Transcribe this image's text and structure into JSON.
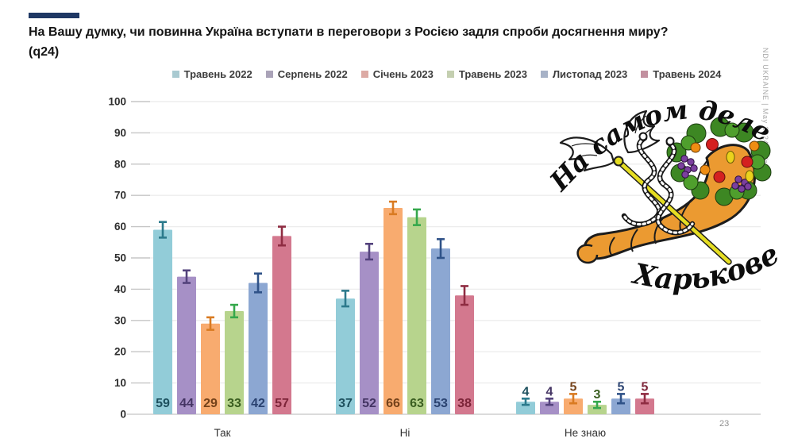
{
  "slide": {
    "title_line1": "На Вашу думку, чи повинна Україна вступати в переговори з Росією задля спроби досягнення миру?",
    "title_line2": "(q24)",
    "side_caption": "NDI UKRAINE | May 2024 | War",
    "page_number": "23",
    "accent_color": "#1f3864"
  },
  "watermark": {
    "text_top": "На самом деле в",
    "text_bottom": "Харькове",
    "horn_color": "#eb9a31",
    "staff_color": "#e5dd22"
  },
  "chart_data": {
    "type": "bar",
    "title": "",
    "xlabel": "",
    "ylabel": "",
    "categories": [
      "Так",
      "Ні",
      "Не знаю"
    ],
    "series": [
      {
        "name": "Травень 2022",
        "values": [
          59,
          37,
          4
        ],
        "errors": [
          2.5,
          2.5,
          1
        ],
        "color": "#92ccd8",
        "legend_color": "#a9cad1",
        "error_color": "#2c7a8c",
        "label_color": "#1d505e"
      },
      {
        "name": "Серпень 2022",
        "values": [
          44,
          52,
          4
        ],
        "errors": [
          2,
          2.5,
          1
        ],
        "color": "#a690c6",
        "legend_color": "#aaa3b8",
        "error_color": "#53427c",
        "label_color": "#443463"
      },
      {
        "name": "Січень 2023",
        "values": [
          29,
          66,
          5
        ],
        "errors": [
          2,
          2,
          1.5
        ],
        "color": "#f8ab6f",
        "legend_color": "#dcaaa4",
        "error_color": "#d97b22",
        "label_color": "#74421a"
      },
      {
        "name": "Травень 2023",
        "values": [
          33,
          63,
          3
        ],
        "errors": [
          2,
          2.5,
          1
        ],
        "color": "#b7d48d",
        "legend_color": "#c4cfb0",
        "error_color": "#35a84c",
        "label_color": "#3a5e20"
      },
      {
        "name": "Листопад 2023",
        "values": [
          42,
          53,
          5
        ],
        "errors": [
          3,
          3,
          1.5
        ],
        "color": "#8ca7d2",
        "legend_color": "#a7b2c7",
        "error_color": "#2f5288",
        "label_color": "#2a4270"
      },
      {
        "name": "Травень 2024",
        "values": [
          57,
          38,
          5
        ],
        "errors": [
          3,
          3,
          1.5
        ],
        "color": "#d3788e",
        "legend_color": "#c2909f",
        "error_color": "#8f2c42",
        "label_color": "#7c2438"
      }
    ],
    "ylim": [
      0,
      100
    ],
    "ytick_step": 10,
    "grid": true,
    "legend_position": "top",
    "error_bars": true,
    "value_label_rule": "inside bar bottom; above bar when value < 10"
  }
}
